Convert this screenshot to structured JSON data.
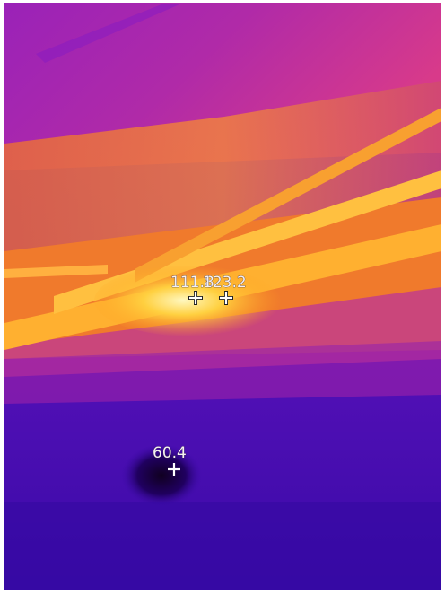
{
  "spots": [
    {
      "label": "111.8"
    },
    {
      "label": "123.2"
    },
    {
      "label": "60.4"
    }
  ]
}
